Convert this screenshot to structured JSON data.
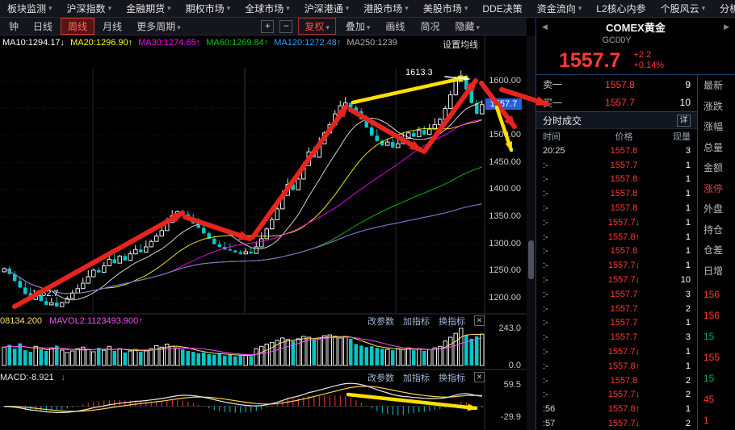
{
  "menu_bar": {
    "items": [
      {
        "label": "板块监测",
        "arrow": true
      },
      {
        "label": "沪深指数",
        "arrow": true
      },
      {
        "label": "金融期货",
        "arrow": true
      },
      {
        "label": "期权市场",
        "arrow": true
      },
      {
        "label": "全球市场",
        "arrow": true
      },
      {
        "label": "沪深港通",
        "arrow": true
      },
      {
        "label": "港股市场",
        "arrow": true
      },
      {
        "label": "美股市场",
        "arrow": true
      },
      {
        "label": "DDE决策",
        "arrow": false
      },
      {
        "label": "资金流向",
        "arrow": true,
        "gap": true
      },
      {
        "label": "L2核心内参",
        "arrow": false
      },
      {
        "label": "个股风云",
        "arrow": true
      },
      {
        "label": "分析",
        "arrow": true
      }
    ]
  },
  "toolbar": {
    "periods": [
      {
        "label": "钟",
        "selected": false
      },
      {
        "label": "日线",
        "selected": false
      },
      {
        "label": "周线",
        "selected": true
      },
      {
        "label": "月线",
        "selected": false
      },
      {
        "label": "更多周期",
        "selected": false,
        "arrow": true
      }
    ],
    "zoom_in": "+",
    "zoom_out": "−",
    "tools": [
      {
        "label": "复权",
        "arrow": true,
        "accent": true
      },
      {
        "label": "叠加",
        "arrow": true
      },
      {
        "label": "画线"
      },
      {
        "label": "简况"
      },
      {
        "label": "隐藏",
        "arrow": true
      }
    ]
  },
  "chart": {
    "ma_legend": [
      {
        "text": "MA10:1294.17↓",
        "color": "#ffffff"
      },
      {
        "text": "MA20:1296.90↑",
        "color": "#ffff00"
      },
      {
        "text": "MA30:1274.65↑",
        "color": "#ff00ff"
      },
      {
        "text": "MA60:1269.84↑",
        "color": "#00cc00"
      },
      {
        "text": "MA120:1272.48↑",
        "color": "#2e9fff"
      },
      {
        "text": "MA250:1239",
        "color": "#b0b0b0"
      }
    ],
    "settings_label": "设置均线",
    "price_badge": "1557.7",
    "peak_label": "1613.3",
    "trough_label": "-1162.7",
    "pane_buttons": [
      "改参数",
      "加指标",
      "换指标"
    ],
    "close_icon": "✕",
    "volume_legend": [
      {
        "text": "08134.200",
        "color": "#ffe066"
      },
      {
        "text": "MAVOL2:1123493.900↑",
        "color": "#ff4dff"
      }
    ],
    "macd_legend": [
      {
        "text": "MACD:-8.921",
        "color": "#e8e8e8"
      },
      {
        "text": "↓",
        "color": "#00c060"
      }
    ]
  },
  "quote_panel": {
    "nav_left": "◀",
    "nav_right": "▶",
    "title": "COMEX黄金",
    "symbol": "GC00Y",
    "price": "1557.7",
    "change": "+2.2",
    "change_pct": "+0.14%",
    "ask": {
      "label": "卖一",
      "price": "1557.8",
      "qty": "9"
    },
    "bid": {
      "label": "买一",
      "price": "1557.7",
      "qty": "10"
    },
    "tick_section_title": "分时成交",
    "detail_button": "详",
    "columns": [
      "时间",
      "价格",
      "现量"
    ],
    "ticks": [
      {
        "time": "20:25",
        "price": "1557.8",
        "dir": "",
        "qty": "3"
      },
      {
        "time": ":-",
        "price": "1557.7",
        "dir": "",
        "qty": "1"
      },
      {
        "time": ":-",
        "price": "1557.8",
        "dir": "",
        "qty": "1"
      },
      {
        "time": ":-",
        "price": "1557.8",
        "dir": "",
        "qty": "1"
      },
      {
        "time": ":-",
        "price": "1557.8",
        "dir": "",
        "qty": "1"
      },
      {
        "time": ":-",
        "price": "1557.7",
        "dir": "down",
        "qty": "1"
      },
      {
        "time": ":-",
        "price": "1557.8",
        "dir": "up",
        "qty": "1"
      },
      {
        "time": ":-",
        "price": "1557.8",
        "dir": "",
        "qty": "1"
      },
      {
        "time": ":-",
        "price": "1557.7",
        "dir": "down",
        "qty": "1"
      },
      {
        "time": ":-",
        "price": "1557.7",
        "dir": "down",
        "qty": "10"
      },
      {
        "time": ":-",
        "price": "1557.7",
        "dir": "",
        "qty": "3"
      },
      {
        "time": ":-",
        "price": "1557.7",
        "dir": "",
        "qty": "2"
      },
      {
        "time": ":-",
        "price": "1557.7",
        "dir": "",
        "qty": "1"
      },
      {
        "time": ":-",
        "price": "1557.7",
        "dir": "",
        "qty": "3"
      },
      {
        "time": ":-",
        "price": "1557.7",
        "dir": "down",
        "qty": "1"
      },
      {
        "time": ":-",
        "price": "1557.8",
        "dir": "up",
        "qty": "1"
      },
      {
        "time": ":-",
        "price": "1557.8",
        "dir": "",
        "qty": "2"
      },
      {
        "time": ":-",
        "price": "1557.7",
        "dir": "down",
        "qty": "2"
      },
      {
        "time": ":56",
        "price": "1557.8",
        "dir": "up",
        "qty": "1"
      },
      {
        "time": ":57",
        "price": "1557.7",
        "dir": "down",
        "qty": "2"
      }
    ]
  },
  "side_strip": {
    "labels": [
      {
        "text": "最新",
        "color": "#b8b8b8"
      },
      {
        "text": "涨跌",
        "color": "#b8b8b8"
      },
      {
        "text": "涨幅",
        "color": "#b8b8b8"
      },
      {
        "text": "总量",
        "color": "#b8b8b8"
      },
      {
        "text": "金额",
        "color": "#b8b8b8"
      },
      {
        "text": "涨停",
        "color": "#d04545"
      },
      {
        "text": "外盘",
        "color": "#b8b8b8"
      },
      {
        "text": "持仓",
        "color": "#b8b8b8"
      },
      {
        "text": "仓差",
        "color": "#b8b8b8"
      },
      {
        "text": "日增",
        "color": "#b8b8b8"
      }
    ],
    "values": [
      {
        "text": "156",
        "color": "#ff3b30"
      },
      {
        "text": "156",
        "color": "#ff3b30"
      },
      {
        "text": "15",
        "color": "#00b35a"
      },
      {
        "text": "155",
        "color": "#ff3b30"
      },
      {
        "text": "15",
        "color": "#00b35a"
      },
      {
        "text": "45",
        "color": "#ff3b30"
      },
      {
        "text": "1",
        "color": "#ff3b30"
      }
    ]
  },
  "chart_data": {
    "type": "candlestick",
    "title": "COMEX黄金 GC00Y 周线",
    "legend_position": "top-left",
    "grid": true,
    "closes": [
      1255,
      1245,
      1232,
      1220,
      1208,
      1198,
      1205,
      1195,
      1188,
      1192,
      1185,
      1192,
      1200,
      1210,
      1218,
      1228,
      1240,
      1252,
      1248,
      1260,
      1272,
      1265,
      1278,
      1270,
      1282,
      1290,
      1285,
      1295,
      1305,
      1315,
      1325,
      1340,
      1352,
      1360,
      1355,
      1348,
      1338,
      1330,
      1320,
      1310,
      1300,
      1295,
      1290,
      1288,
      1285,
      1282,
      1286,
      1283,
      1295,
      1310,
      1328,
      1345,
      1365,
      1390,
      1410,
      1400,
      1420,
      1445,
      1470,
      1460,
      1485,
      1505,
      1520,
      1540,
      1555,
      1560,
      1552,
      1545,
      1530,
      1515,
      1500,
      1490,
      1482,
      1488,
      1478,
      1485,
      1495,
      1505,
      1498,
      1510,
      1502,
      1512,
      1520,
      1530,
      1550,
      1575,
      1600,
      1610,
      1585,
      1560,
      1540,
      1557
    ],
    "volumes": [
      120,
      135,
      110,
      145,
      100,
      90,
      125,
      105,
      95,
      115,
      130,
      100,
      85,
      95,
      110,
      120,
      105,
      90,
      115,
      100,
      125,
      95,
      110,
      85,
      95,
      105,
      90,
      100,
      110,
      130,
      120,
      140,
      125,
      115,
      105,
      95,
      90,
      80,
      85,
      75,
      70,
      80,
      65,
      70,
      60,
      65,
      70,
      60,
      110,
      125,
      140,
      150,
      165,
      180,
      170,
      160,
      175,
      190,
      185,
      170,
      180,
      195,
      200,
      190,
      180,
      185,
      175,
      140,
      130,
      120,
      125,
      115,
      110,
      105,
      100,
      110,
      105,
      115,
      100,
      110,
      95,
      105,
      115,
      125,
      160,
      185,
      210,
      243,
      200,
      175,
      190,
      205
    ],
    "high_annotation": 1613.3,
    "low_annotation": -1162.7,
    "latest_price": 1557.7,
    "price_axis": {
      "ticks": [
        1600,
        1550,
        1500,
        1450,
        1400,
        1350,
        1300,
        1250,
        1200
      ],
      "labels": [
        {
          "value": 1600,
          "text": "1600.00"
        },
        {
          "value": 1500,
          "text": "1500.00"
        },
        {
          "value": 1450,
          "text": "1450.00"
        },
        {
          "value": 1400,
          "text": "1400.00"
        },
        {
          "value": 1350,
          "text": "1350.00"
        },
        {
          "value": 1300,
          "text": "1300.00"
        },
        {
          "value": 1250,
          "text": "1250.00"
        },
        {
          "value": 1200,
          "text": "1200.00"
        }
      ]
    },
    "volume_axis": {
      "max": 243,
      "labels": [
        {
          "text": "243.0",
          "value": 243
        },
        {
          "text": "0.0",
          "value": 0
        }
      ]
    },
    "macd_axis": {
      "labels": [
        {
          "text": "59.5",
          "value": 59.5
        },
        {
          "text": "-29.9",
          "value": -29.9
        }
      ]
    },
    "ma_windows": [
      10,
      20,
      30,
      60,
      120,
      250
    ],
    "ma_colors": [
      "#e8e8e8",
      "#ffff00",
      "#ff00ff",
      "#00cc00",
      "#2e9fff",
      "#8f6fc0"
    ],
    "up_color": "#e8e8e8",
    "down_color": "#00c8c8"
  }
}
